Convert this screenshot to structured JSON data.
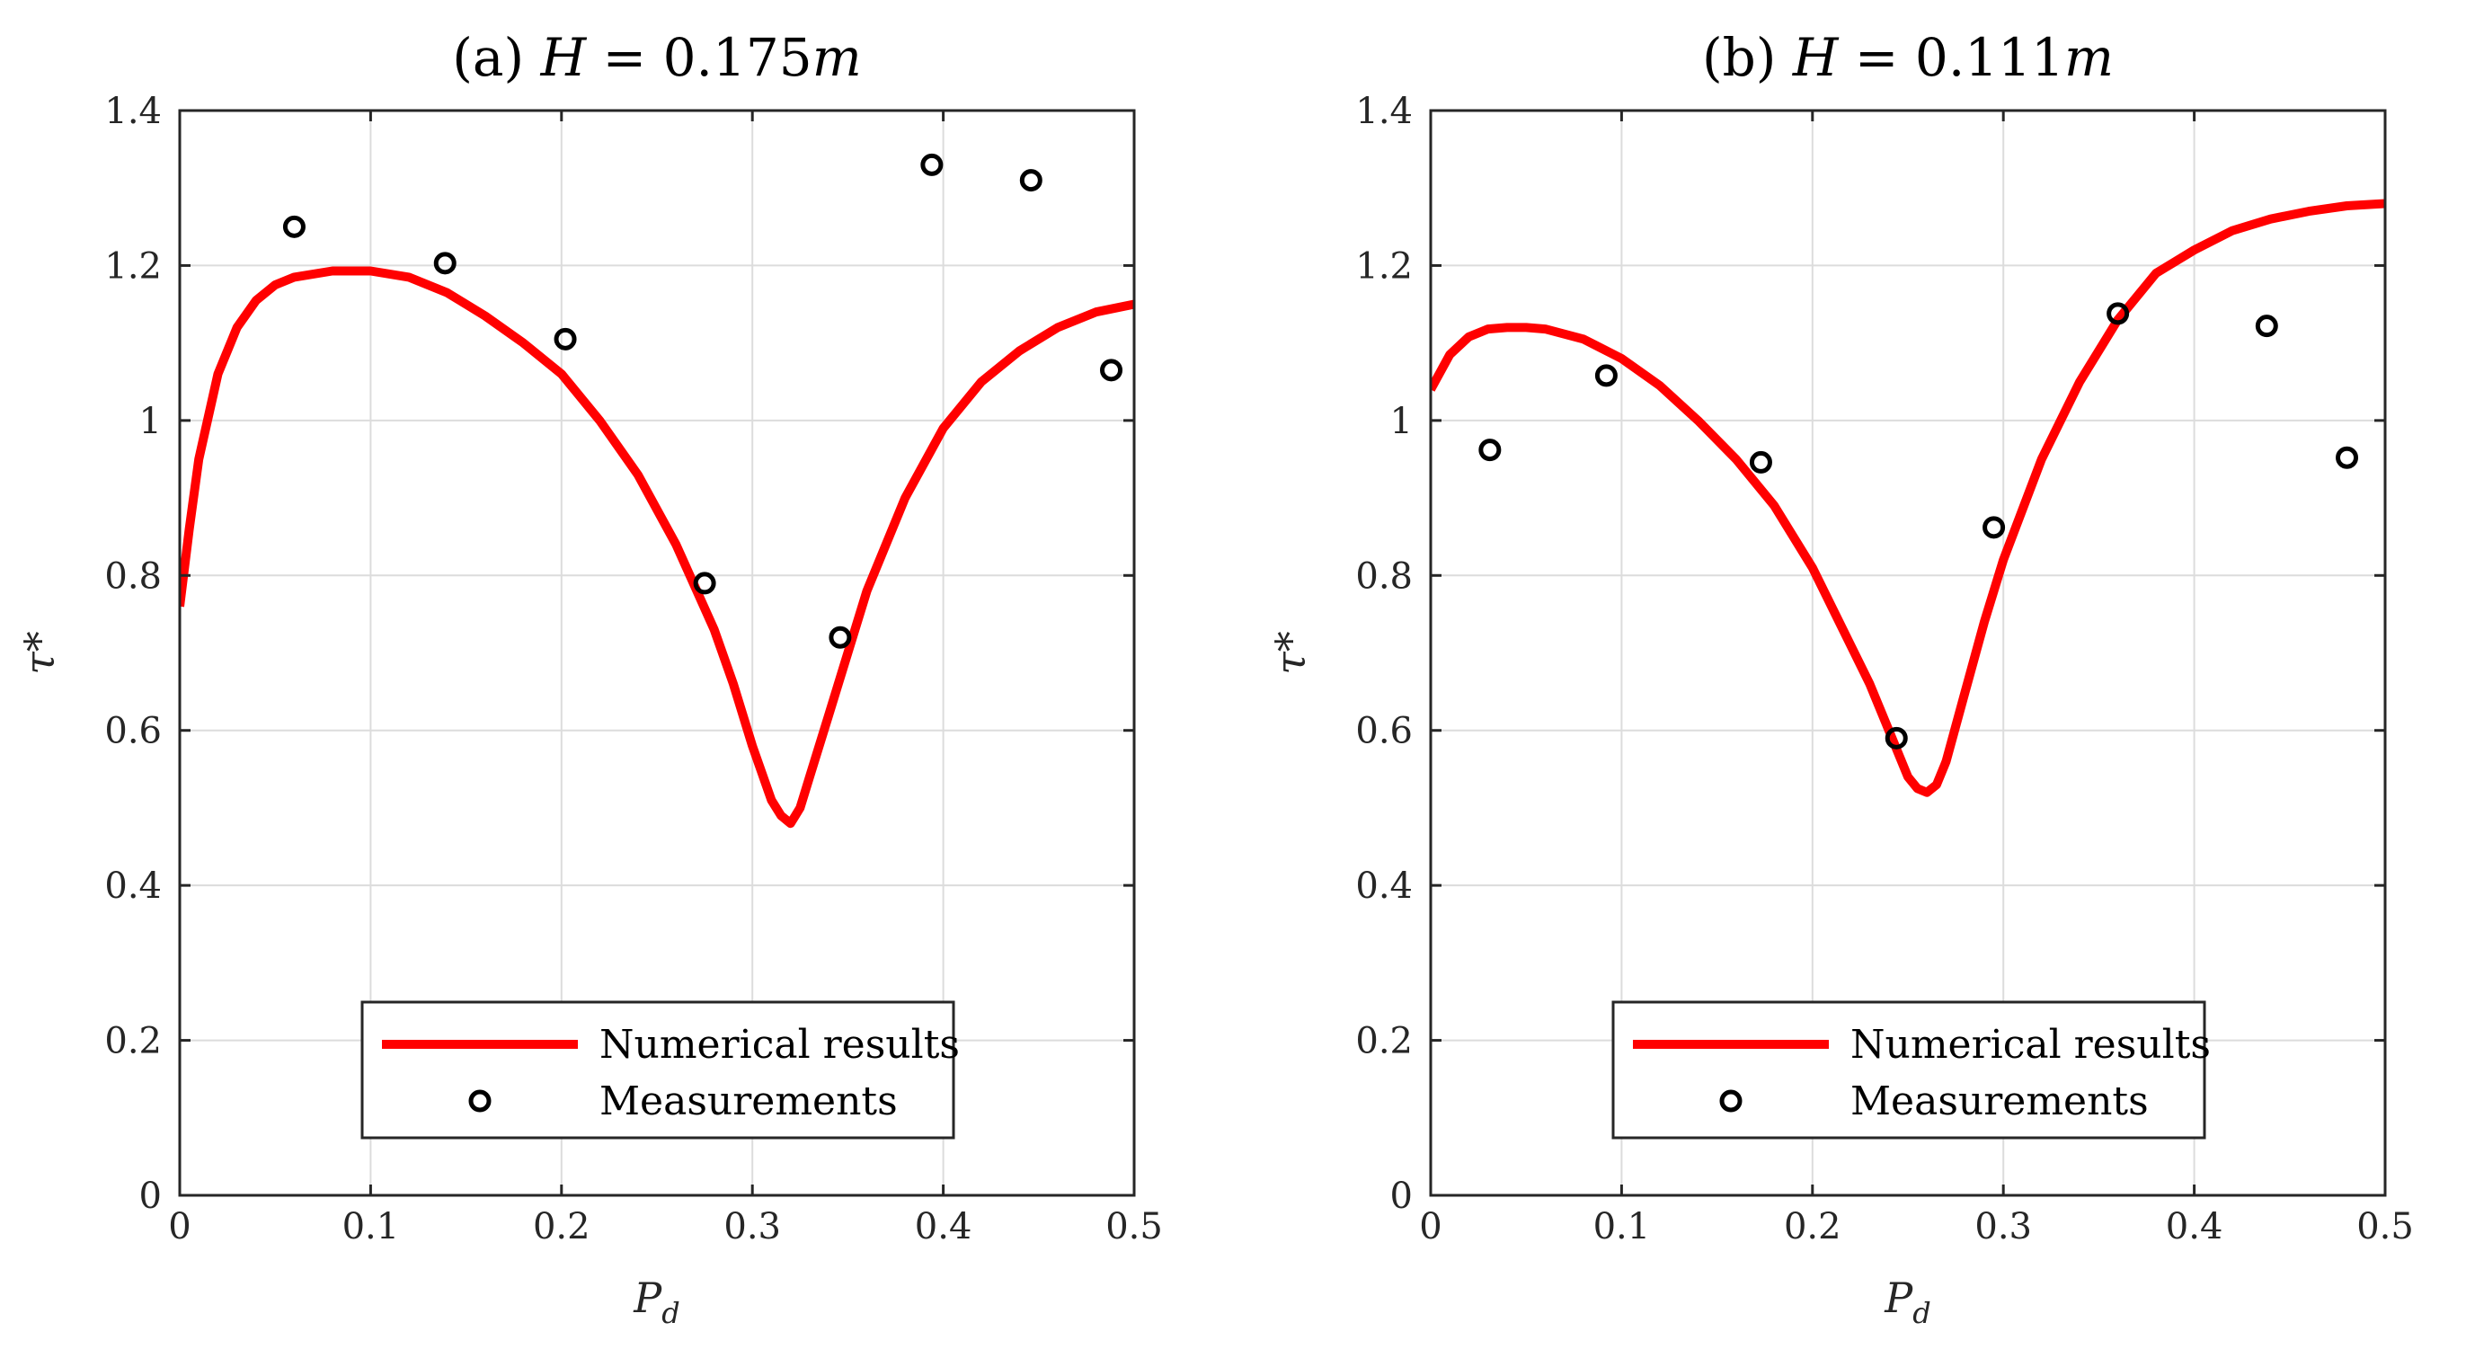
{
  "colors": {
    "curve": "#ff0000",
    "marker": "#000000",
    "axis": "#262626",
    "grid": "#dcdcdc"
  },
  "chart_data": [
    {
      "type": "line",
      "title_prefix": "(a) ",
      "title_var": "H",
      "title_eq": " = 0.175",
      "title_unit": "m",
      "xlabel_main": "P",
      "xlabel_sub": "d",
      "ylabel": "τ*",
      "xlim": [
        0,
        0.5
      ],
      "ylim": [
        0,
        1.4
      ],
      "xticks": [
        0,
        0.1,
        0.2,
        0.3,
        0.4,
        0.5
      ],
      "xtick_labels": [
        "0",
        "0.1",
        "0.2",
        "0.3",
        "0.4",
        "0.5"
      ],
      "yticks": [
        0,
        0.2,
        0.4,
        0.6,
        0.8,
        1.0,
        1.2,
        1.4
      ],
      "ytick_labels": [
        "0",
        "0.2",
        "0.4",
        "0.6",
        "0.8",
        "1",
        "1.2",
        "1.4"
      ],
      "grid": true,
      "legend_position": "bottom-center",
      "series": [
        {
          "name": "Numerical results",
          "style": "line",
          "x": [
            0,
            0.005,
            0.01,
            0.02,
            0.03,
            0.04,
            0.05,
            0.06,
            0.08,
            0.1,
            0.12,
            0.14,
            0.16,
            0.18,
            0.2,
            0.22,
            0.24,
            0.26,
            0.28,
            0.29,
            0.3,
            0.31,
            0.315,
            0.32,
            0.325,
            0.33,
            0.34,
            0.35,
            0.36,
            0.38,
            0.4,
            0.42,
            0.44,
            0.46,
            0.48,
            0.5
          ],
          "y": [
            0.76,
            0.86,
            0.95,
            1.06,
            1.12,
            1.155,
            1.175,
            1.185,
            1.193,
            1.193,
            1.185,
            1.165,
            1.135,
            1.1,
            1.06,
            1.0,
            0.93,
            0.84,
            0.73,
            0.66,
            0.58,
            0.51,
            0.49,
            0.48,
            0.5,
            0.54,
            0.62,
            0.7,
            0.78,
            0.9,
            0.99,
            1.05,
            1.09,
            1.12,
            1.14,
            1.15
          ]
        },
        {
          "name": "Measurements",
          "style": "marker",
          "x": [
            0.06,
            0.139,
            0.202,
            0.275,
            0.346,
            0.394,
            0.446,
            0.488
          ],
          "y": [
            1.25,
            1.203,
            1.105,
            0.79,
            0.72,
            1.33,
            1.31,
            1.065
          ]
        }
      ]
    },
    {
      "type": "line",
      "title_prefix": "(b) ",
      "title_var": "H",
      "title_eq": " = 0.111",
      "title_unit": "m",
      "xlabel_main": "P",
      "xlabel_sub": "d",
      "ylabel": "τ*",
      "xlim": [
        0,
        0.5
      ],
      "ylim": [
        0,
        1.4
      ],
      "xticks": [
        0,
        0.1,
        0.2,
        0.3,
        0.4,
        0.5
      ],
      "xtick_labels": [
        "0",
        "0.1",
        "0.2",
        "0.3",
        "0.4",
        "0.5"
      ],
      "yticks": [
        0,
        0.2,
        0.4,
        0.6,
        0.8,
        1.0,
        1.2,
        1.4
      ],
      "ytick_labels": [
        "0",
        "0.2",
        "0.4",
        "0.6",
        "0.8",
        "1",
        "1.2",
        "1.4"
      ],
      "grid": true,
      "legend_position": "bottom-center",
      "series": [
        {
          "name": "Numerical results",
          "style": "line",
          "x": [
            0,
            0.01,
            0.02,
            0.03,
            0.04,
            0.05,
            0.06,
            0.08,
            0.1,
            0.12,
            0.14,
            0.16,
            0.18,
            0.2,
            0.22,
            0.23,
            0.24,
            0.25,
            0.255,
            0.26,
            0.265,
            0.27,
            0.28,
            0.29,
            0.3,
            0.32,
            0.34,
            0.36,
            0.38,
            0.4,
            0.42,
            0.44,
            0.46,
            0.48,
            0.5
          ],
          "y": [
            1.04,
            1.085,
            1.108,
            1.118,
            1.12,
            1.12,
            1.118,
            1.105,
            1.08,
            1.045,
            1.0,
            0.95,
            0.89,
            0.81,
            0.71,
            0.66,
            0.6,
            0.54,
            0.525,
            0.52,
            0.53,
            0.56,
            0.65,
            0.74,
            0.82,
            0.95,
            1.05,
            1.13,
            1.19,
            1.22,
            1.245,
            1.26,
            1.27,
            1.277,
            1.28
          ]
        },
        {
          "name": "Measurements",
          "style": "marker",
          "x": [
            0.031,
            0.092,
            0.173,
            0.244,
            0.295,
            0.36,
            0.438,
            0.48
          ],
          "y": [
            0.962,
            1.058,
            0.946,
            0.59,
            0.862,
            1.138,
            1.122,
            0.952
          ]
        }
      ]
    }
  ]
}
